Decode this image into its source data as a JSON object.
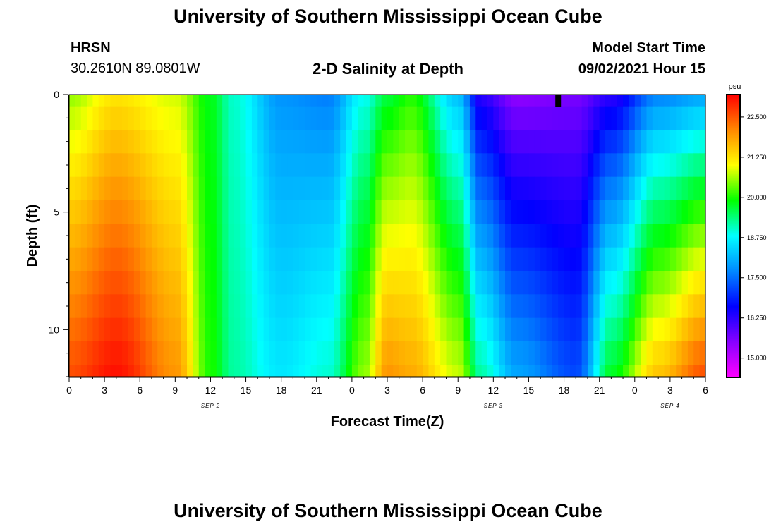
{
  "page": {
    "title_top": "University of Southern Mississippi Ocean Cube",
    "title_bottom": "University of Southern Mississippi Ocean Cube",
    "station_name": "HRSN",
    "station_coords": "30.2610N  89.0801W",
    "product_title": "2-D Salinity at Depth",
    "model_start_label": "Model Start Time",
    "model_start_value": "09/02/2021 Hour 15"
  },
  "chart_data": {
    "type": "heatmap",
    "title": "2-D Salinity at Depth",
    "xlabel": "Forecast Time(Z)",
    "ylabel": "Depth (ft)",
    "x_range_hours": [
      0,
      54
    ],
    "y_range_ft": [
      0,
      12
    ],
    "y_inverted": true,
    "x_ticks": [
      "0",
      "3",
      "6",
      "9",
      "12",
      "15",
      "18",
      "21",
      "0",
      "3",
      "6",
      "9",
      "12",
      "15",
      "18",
      "21",
      "0",
      "3",
      "6"
    ],
    "date_labels": [
      {
        "text": "SEP 2",
        "hour": 12
      },
      {
        "text": "SEP 3",
        "hour": 36
      },
      {
        "text": "SEP 4",
        "hour": 51
      }
    ],
    "y_ticks": [
      "0",
      "5",
      "10"
    ],
    "y_tick_values": [
      0,
      5,
      10
    ],
    "current_time_marker_hour": 41.5,
    "colorbar": {
      "unit": "psu",
      "min": 14.4,
      "max": 23.2,
      "tick_labels": [
        "22.500",
        "21.250",
        "20.000",
        "18.750",
        "17.500",
        "16.250",
        "15.000"
      ],
      "tick_values": [
        22.5,
        21.25,
        20.0,
        18.75,
        17.5,
        16.25,
        15.0
      ],
      "scale_colors": [
        "#ff00ff",
        "#8800ff",
        "#0000ff",
        "#0088ff",
        "#00ffff",
        "#00ff00",
        "#ffff00",
        "#ff8800",
        "#ff0000"
      ]
    },
    "depth_levels_ft": [
      0,
      0.5,
      1.5,
      2.5,
      3.5,
      4.5,
      5.5,
      6.5,
      7.5,
      8.5,
      9.5,
      10.5,
      11.5
    ],
    "salinity_keyframes": [
      {
        "hour": 0,
        "surface": 20.5,
        "bottom": 22.6
      },
      {
        "hour": 4,
        "surface": 21.2,
        "bottom": 23.1
      },
      {
        "hour": 9,
        "surface": 20.8,
        "bottom": 22.0
      },
      {
        "hour": 12,
        "surface": 19.8,
        "bottom": 20.0
      },
      {
        "hour": 14,
        "surface": 19.0,
        "bottom": 19.2
      },
      {
        "hour": 18,
        "surface": 17.8,
        "bottom": 18.6
      },
      {
        "hour": 22,
        "surface": 17.6,
        "bottom": 19.0
      },
      {
        "hour": 25,
        "surface": 18.8,
        "bottom": 20.5
      },
      {
        "hour": 27,
        "surface": 19.6,
        "bottom": 22.0
      },
      {
        "hour": 29,
        "surface": 20.0,
        "bottom": 21.8
      },
      {
        "hour": 33,
        "surface": 18.2,
        "bottom": 20.8
      },
      {
        "hour": 35,
        "surface": 16.2,
        "bottom": 19.2
      },
      {
        "hour": 38,
        "surface": 15.4,
        "bottom": 18.0
      },
      {
        "hour": 43,
        "surface": 15.6,
        "bottom": 17.2
      },
      {
        "hour": 46,
        "surface": 16.2,
        "bottom": 19.8
      },
      {
        "hour": 50,
        "surface": 17.6,
        "bottom": 21.6
      },
      {
        "hour": 54,
        "surface": 17.9,
        "bottom": 22.6
      }
    ]
  }
}
